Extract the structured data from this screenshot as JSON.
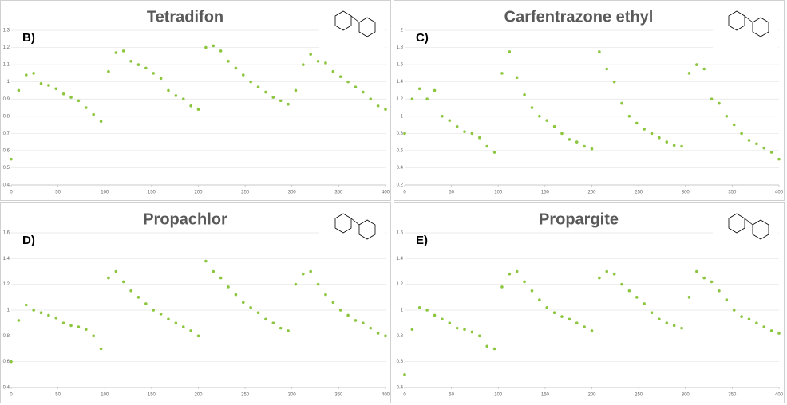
{
  "chart_data": [
    {
      "type": "scatter",
      "title": "Tetradifon",
      "label": "B)",
      "color": "#8cc63f",
      "grid": true,
      "xlim": [
        0,
        400
      ],
      "xticks": [
        0,
        50,
        100,
        150,
        200,
        250,
        300,
        350,
        400
      ],
      "ylim": [
        0.4,
        1.3
      ],
      "yticks": [
        0.4,
        0.5,
        0.6,
        0.7,
        0.8,
        0.9,
        1,
        1.1,
        1.2,
        1.3
      ],
      "x": [
        0,
        8,
        16,
        24,
        32,
        40,
        48,
        56,
        64,
        72,
        80,
        88,
        96,
        104,
        112,
        120,
        128,
        136,
        144,
        152,
        160,
        168,
        176,
        184,
        192,
        200,
        208,
        216,
        224,
        232,
        240,
        248,
        256,
        264,
        272,
        280,
        288,
        296,
        304,
        312,
        320,
        328,
        336,
        344,
        352,
        360,
        368,
        376,
        384,
        392,
        400
      ],
      "values": [
        0.55,
        0.95,
        1.04,
        1.05,
        0.99,
        0.98,
        0.96,
        0.93,
        0.91,
        0.89,
        0.85,
        0.81,
        0.77,
        1.06,
        1.17,
        1.18,
        1.12,
        1.1,
        1.08,
        1.05,
        1.02,
        0.95,
        0.92,
        0.9,
        0.86,
        0.84,
        1.2,
        1.21,
        1.18,
        1.12,
        1.08,
        1.04,
        1.0,
        0.97,
        0.94,
        0.91,
        0.89,
        0.87,
        0.95,
        1.1,
        1.16,
        1.12,
        1.11,
        1.06,
        1.03,
        1.0,
        0.97,
        0.94,
        0.9,
        0.86,
        0.84
      ]
    },
    {
      "type": "scatter",
      "title": "Carfentrazone ethyl",
      "label": "C)",
      "color": "#8cc63f",
      "grid": true,
      "xlim": [
        0,
        400
      ],
      "xticks": [
        0,
        50,
        100,
        150,
        200,
        250,
        300,
        350,
        400
      ],
      "ylim": [
        0.2,
        2
      ],
      "yticks": [
        0.2,
        0.4,
        0.6,
        0.8,
        1,
        1.2,
        1.4,
        1.6,
        1.8,
        2
      ],
      "x": [
        0,
        8,
        16,
        24,
        32,
        40,
        48,
        56,
        64,
        72,
        80,
        88,
        96,
        104,
        112,
        120,
        128,
        136,
        144,
        152,
        160,
        168,
        176,
        184,
        192,
        200,
        208,
        216,
        224,
        232,
        240,
        248,
        256,
        264,
        272,
        280,
        288,
        296,
        304,
        312,
        320,
        328,
        336,
        344,
        352,
        360,
        368,
        376,
        384,
        392,
        400
      ],
      "values": [
        0.8,
        1.2,
        1.32,
        1.2,
        1.3,
        1.0,
        0.95,
        0.88,
        0.82,
        0.8,
        0.75,
        0.65,
        0.58,
        1.5,
        1.75,
        1.45,
        1.25,
        1.1,
        1.0,
        0.95,
        0.88,
        0.8,
        0.73,
        0.7,
        0.65,
        0.62,
        1.75,
        1.55,
        1.4,
        1.15,
        1.0,
        0.92,
        0.85,
        0.8,
        0.75,
        0.7,
        0.66,
        0.65,
        1.5,
        1.6,
        1.55,
        1.2,
        1.15,
        1.0,
        0.9,
        0.8,
        0.72,
        0.68,
        0.63,
        0.58,
        0.5
      ]
    },
    {
      "type": "scatter",
      "title": "Propachlor",
      "label": "D)",
      "color": "#8cc63f",
      "grid": true,
      "xlim": [
        0,
        400
      ],
      "xticks": [
        0,
        50,
        100,
        150,
        200,
        250,
        300,
        350,
        400
      ],
      "ylim": [
        0.4,
        1.6
      ],
      "yticks": [
        0.4,
        0.6,
        0.8,
        1,
        1.2,
        1.4,
        1.6
      ],
      "x": [
        0,
        8,
        16,
        24,
        32,
        40,
        48,
        56,
        64,
        72,
        80,
        88,
        96,
        104,
        112,
        120,
        128,
        136,
        144,
        152,
        160,
        168,
        176,
        184,
        192,
        200,
        208,
        216,
        224,
        232,
        240,
        248,
        256,
        264,
        272,
        280,
        288,
        296,
        304,
        312,
        320,
        328,
        336,
        344,
        352,
        360,
        368,
        376,
        384,
        392,
        400
      ],
      "values": [
        0.6,
        0.92,
        1.04,
        1.0,
        0.98,
        0.96,
        0.94,
        0.9,
        0.88,
        0.87,
        0.85,
        0.8,
        0.7,
        1.25,
        1.3,
        1.22,
        1.15,
        1.1,
        1.05,
        1.0,
        0.97,
        0.93,
        0.9,
        0.87,
        0.84,
        0.8,
        1.38,
        1.3,
        1.25,
        1.18,
        1.12,
        1.06,
        1.02,
        0.98,
        0.93,
        0.9,
        0.86,
        0.84,
        1.2,
        1.28,
        1.3,
        1.2,
        1.12,
        1.06,
        1.0,
        0.96,
        0.92,
        0.9,
        0.86,
        0.82,
        0.8
      ]
    },
    {
      "type": "scatter",
      "title": "Propargite",
      "label": "E)",
      "color": "#8cc63f",
      "grid": true,
      "xlim": [
        0,
        400
      ],
      "xticks": [
        0,
        50,
        100,
        150,
        200,
        250,
        300,
        350,
        400
      ],
      "ylim": [
        0.4,
        1.6
      ],
      "yticks": [
        0.4,
        0.6,
        0.8,
        1,
        1.2,
        1.4,
        1.6
      ],
      "x": [
        0,
        8,
        16,
        24,
        32,
        40,
        48,
        56,
        64,
        72,
        80,
        88,
        96,
        104,
        112,
        120,
        128,
        136,
        144,
        152,
        160,
        168,
        176,
        184,
        192,
        200,
        208,
        216,
        224,
        232,
        240,
        248,
        256,
        264,
        272,
        280,
        288,
        296,
        304,
        312,
        320,
        328,
        336,
        344,
        352,
        360,
        368,
        376,
        384,
        392,
        400
      ],
      "values": [
        0.5,
        0.85,
        1.02,
        1.0,
        0.96,
        0.93,
        0.9,
        0.86,
        0.85,
        0.83,
        0.8,
        0.72,
        0.7,
        1.18,
        1.28,
        1.3,
        1.22,
        1.15,
        1.08,
        1.02,
        0.98,
        0.95,
        0.93,
        0.9,
        0.87,
        0.84,
        1.25,
        1.3,
        1.28,
        1.2,
        1.15,
        1.1,
        1.05,
        0.98,
        0.93,
        0.9,
        0.88,
        0.86,
        1.1,
        1.3,
        1.25,
        1.22,
        1.15,
        1.08,
        1.0,
        0.95,
        0.93,
        0.9,
        0.87,
        0.84,
        0.82
      ]
    }
  ]
}
